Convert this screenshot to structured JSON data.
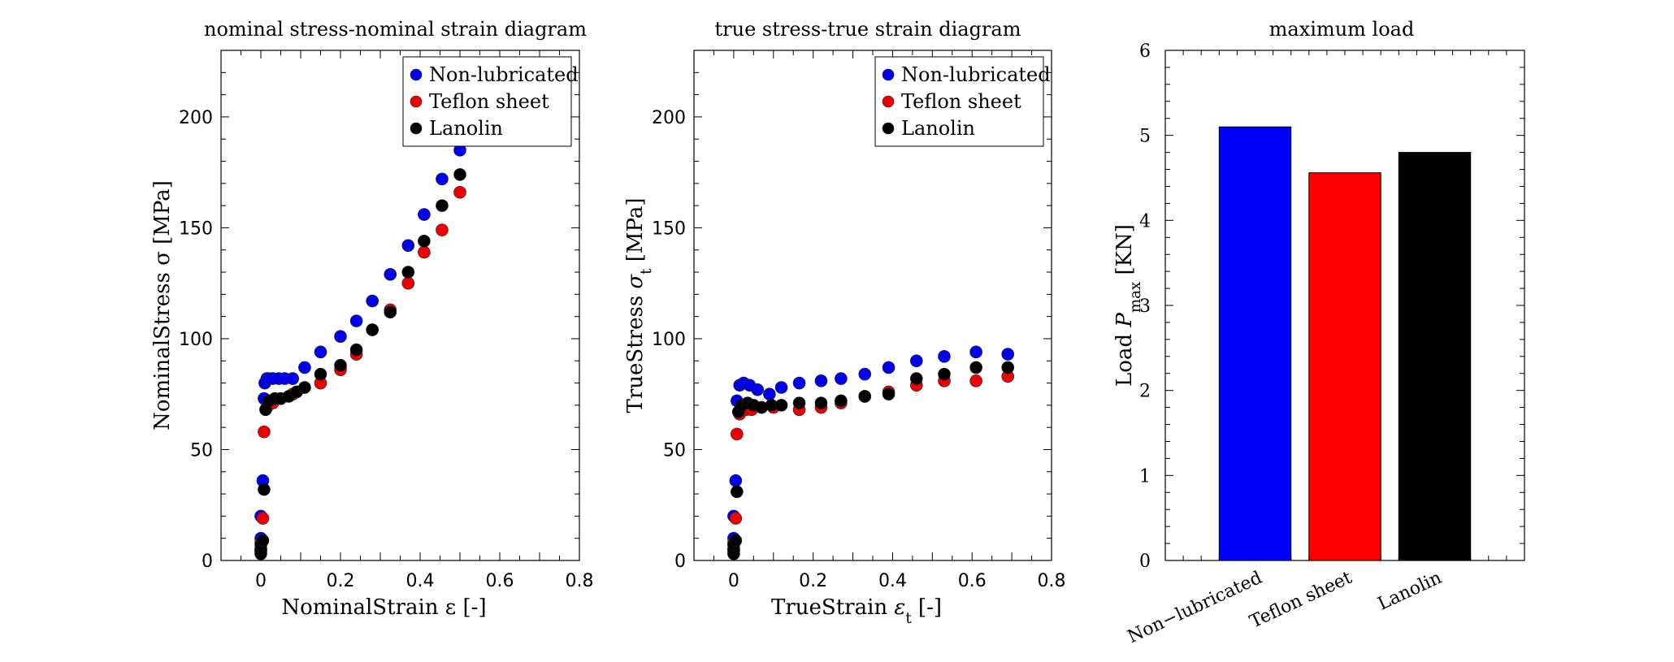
{
  "chart_data": [
    {
      "type": "scatter",
      "title": "nominal stress-nominal strain diagram",
      "xlabel": "NominalStrain ε [-]",
      "ylabel": "NominalStress σ [MPa]",
      "xlim": [
        -0.1,
        0.8
      ],
      "ylim": [
        0,
        230
      ],
      "xticks": [
        0,
        0.2,
        0.4,
        0.6,
        0.8
      ],
      "xtick_labels": [
        "0",
        "0.2",
        "0.4",
        "0.6",
        "0.8"
      ],
      "yticks": [
        0,
        50,
        100,
        150,
        200
      ],
      "ytick_labels": [
        "0",
        "50",
        "100",
        "150",
        "200"
      ],
      "legend_position": "top-right",
      "series": [
        {
          "name": "Non-lubricated",
          "color": "#0000ee",
          "x": [
            0.0,
            0.0,
            0.0,
            0.005,
            0.008,
            0.01,
            0.015,
            0.02,
            0.03,
            0.045,
            0.06,
            0.08,
            0.11,
            0.15,
            0.2,
            0.24,
            0.28,
            0.325,
            0.37,
            0.41,
            0.455,
            0.5
          ],
          "y": [
            5,
            10,
            20,
            36,
            73,
            80,
            82,
            82,
            82,
            82,
            82,
            82,
            87,
            94,
            101,
            108,
            117,
            129,
            142,
            156,
            172,
            185
          ]
        },
        {
          "name": "Teflon sheet",
          "color": "#ee0000",
          "x": [
            0.0,
            0.0,
            0.005,
            0.008,
            0.015,
            0.03,
            0.05,
            0.08,
            0.11,
            0.15,
            0.2,
            0.24,
            0.28,
            0.325,
            0.37,
            0.41,
            0.455,
            0.5
          ],
          "y": [
            4,
            8,
            19,
            58,
            69,
            71,
            73,
            75,
            78,
            80,
            86,
            93,
            104,
            113,
            125,
            139,
            149,
            166
          ]
        },
        {
          "name": "Lanolin",
          "color": "#000000",
          "x": [
            0.0,
            0.0,
            0.0,
            0.005,
            0.008,
            0.012,
            0.02,
            0.035,
            0.05,
            0.07,
            0.09,
            0.11,
            0.15,
            0.2,
            0.24,
            0.28,
            0.325,
            0.37,
            0.41,
            0.455,
            0.5
          ],
          "y": [
            3,
            5,
            7,
            9,
            32,
            68,
            72,
            73,
            73,
            74,
            76,
            78,
            84,
            88,
            95,
            104,
            112,
            130,
            144,
            160,
            174
          ]
        }
      ]
    },
    {
      "type": "scatter",
      "title": "true stress-true strain diagram",
      "xlabel": "TrueStrain ε_t [-]",
      "ylabel": "TrueStress σ_t [MPa]",
      "xlim": [
        -0.1,
        0.8
      ],
      "ylim": [
        0,
        230
      ],
      "xticks": [
        0,
        0.2,
        0.4,
        0.6,
        0.8
      ],
      "xtick_labels": [
        "0",
        "0.2",
        "0.4",
        "0.6",
        "0.8"
      ],
      "yticks": [
        0,
        50,
        100,
        150,
        200
      ],
      "ytick_labels": [
        "0",
        "50",
        "100",
        "150",
        "200"
      ],
      "legend_position": "top-right",
      "series": [
        {
          "name": "Non-lubricated",
          "color": "#0000ee",
          "x": [
            0.0,
            0.0,
            0.0,
            0.005,
            0.008,
            0.015,
            0.025,
            0.04,
            0.06,
            0.09,
            0.12,
            0.165,
            0.22,
            0.27,
            0.33,
            0.39,
            0.46,
            0.53,
            0.61,
            0.69
          ],
          "y": [
            5,
            10,
            20,
            36,
            72,
            79,
            80,
            79,
            77,
            75,
            78,
            80,
            81,
            82,
            84,
            87,
            90,
            92,
            94,
            93
          ]
        },
        {
          "name": "Teflon sheet",
          "color": "#ee0000",
          "x": [
            0.0,
            0.0,
            0.005,
            0.008,
            0.015,
            0.03,
            0.045,
            0.07,
            0.1,
            0.165,
            0.22,
            0.27,
            0.33,
            0.39,
            0.46,
            0.53,
            0.61,
            0.69
          ],
          "y": [
            4,
            8,
            19,
            57,
            66,
            68,
            68,
            69,
            69,
            68,
            69,
            71,
            74,
            76,
            79,
            81,
            81,
            83
          ]
        },
        {
          "name": "Lanolin",
          "color": "#000000",
          "x": [
            0.0,
            0.0,
            0.0,
            0.005,
            0.008,
            0.012,
            0.02,
            0.035,
            0.05,
            0.07,
            0.095,
            0.12,
            0.165,
            0.22,
            0.27,
            0.33,
            0.39,
            0.46,
            0.53,
            0.61,
            0.69
          ],
          "y": [
            3,
            5,
            7,
            9,
            31,
            67,
            70,
            71,
            70,
            69,
            70,
            70,
            71,
            71,
            72,
            74,
            75,
            82,
            84,
            87,
            87
          ]
        }
      ]
    },
    {
      "type": "bar",
      "title": "maximum load",
      "xlabel": "",
      "ylabel": "Load P_max [KN]",
      "ylim": [
        0,
        6
      ],
      "yticks": [
        0,
        1,
        2,
        3,
        4,
        5,
        6
      ],
      "ytick_labels": [
        "0",
        "1",
        "2",
        "3",
        "4",
        "5",
        "6"
      ],
      "categories": [
        "Non−lubricated",
        "Teflon sheet",
        "Lanolin"
      ],
      "values": [
        5.1,
        4.56,
        4.8
      ],
      "colors": [
        "#0000ff",
        "#ff0000",
        "#000000"
      ]
    }
  ]
}
